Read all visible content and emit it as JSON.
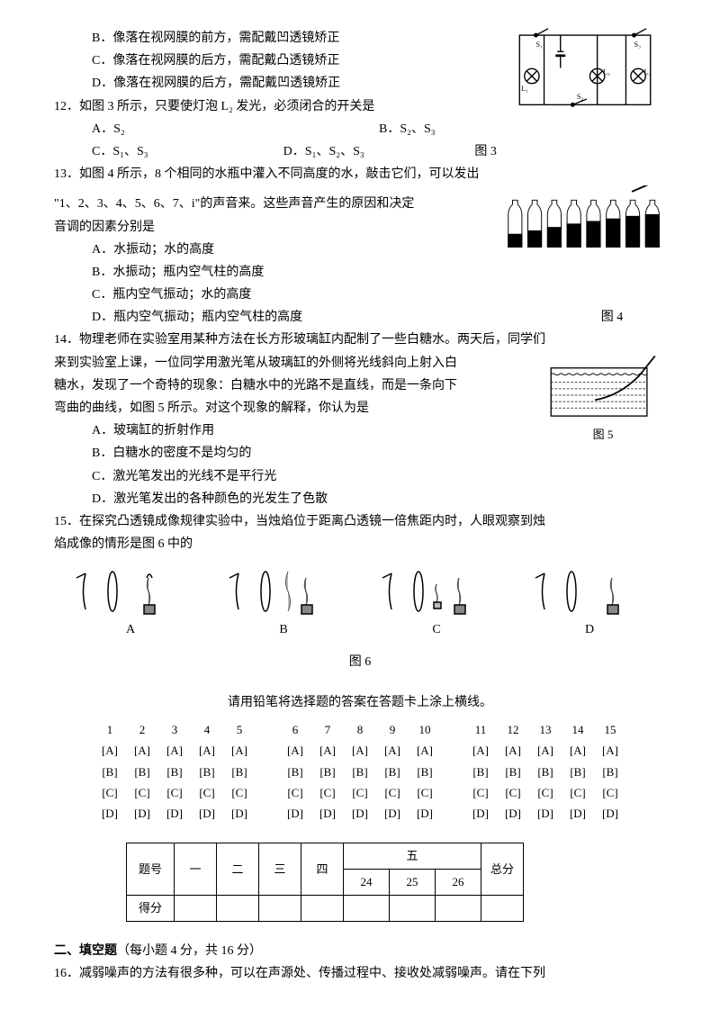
{
  "q11": {
    "B": "B．像落在视网膜的前方，需配戴凹透镜矫正",
    "C": "C．像落在视网膜的后方，需配戴凸透镜矫正",
    "D": "D．像落在视网膜的后方，需配戴凹透镜矫正"
  },
  "q12": {
    "stem": "12．如图 3 所示，只要使灯泡 L₂ 发光，必须闭合的开关是",
    "A": "A．S₂",
    "B": "B．S₂、S₃",
    "C": "C．S₁、S₃",
    "D": "D．S₁、S₂、S₃",
    "fig": "图 3"
  },
  "q13": {
    "stem": "13．如图 4 所示，8 个相同的水瓶中灌入不同高度的水，敲击它们，可以发出",
    "stem2": "\"1、2、3、4、5、6、7、i\"的声音来。这些声音产生的原因和决定",
    "stem3": "音调的因素分别是",
    "A": "A．水振动；水的高度",
    "B": "B．水振动；瓶内空气柱的高度",
    "C": "C．瓶内空气振动；水的高度",
    "D": "D．瓶内空气振动；瓶内空气柱的高度",
    "fig": "图 4"
  },
  "q14": {
    "stem": "14．物理老师在实验室用某种方法在长方形玻璃缸内配制了一些白糖水。两天后，同学们",
    "l2": "来到实验室上课，一位同学用激光笔从玻璃缸的外侧将光线斜向上射入白",
    "l3": "糖水，发现了一个奇特的现象：白糖水中的光路不是直线，而是一条向下",
    "l4": "弯曲的曲线，如图 5 所示。对这个现象的解释，你认为是",
    "A": "A．玻璃缸的折射作用",
    "B": "B．白糖水的密度不是均匀的",
    "C": "C．激光笔发出的光线不是平行光",
    "D": "D．激光笔发出的各种颜色的光发生了色散",
    "fig": "图 5"
  },
  "q15": {
    "stem": "15．在探究凸透镜成像规律实验中，当烛焰位于距离凸透镜一倍焦距内时，人眼观察到烛",
    "l2": "焰成像的情形是图 6 中的",
    "fig": "图 6",
    "labels": {
      "A": "A",
      "B": "B",
      "C": "C",
      "D": "D"
    }
  },
  "answer": {
    "intro": "请用铅笔将选择题的答案在答题卡上涂上横线。",
    "nums1": [
      "1",
      "2",
      "3",
      "4",
      "5"
    ],
    "nums2": [
      "6",
      "7",
      "8",
      "9",
      "10"
    ],
    "nums3": [
      "11",
      "12",
      "13",
      "14",
      "15"
    ],
    "rows": [
      [
        "[A]",
        "[A]",
        "[A]",
        "[A]",
        "[A]"
      ],
      [
        "[B]",
        "[B]",
        "[B]",
        "[B]",
        "[B]"
      ],
      [
        "[C]",
        "[C]",
        "[C]",
        "[C]",
        "[C]"
      ],
      [
        "[D]",
        "[D]",
        "[D]",
        "[D]",
        "[D]"
      ]
    ]
  },
  "score": {
    "h": [
      "题号",
      "一",
      "二",
      "三",
      "四",
      "五",
      "总分"
    ],
    "sub": [
      "24",
      "25",
      "26"
    ],
    "row": "得分"
  },
  "sec2": {
    "title": "二、填空题",
    "note": "（每小题 4 分，共 16 分）",
    "q16": "16．减弱噪声的方法有很多种，可以在声源处、传播过程中、接收处减弱噪声。请在下列"
  },
  "colors": {
    "stroke": "#000",
    "light": "#fff"
  }
}
